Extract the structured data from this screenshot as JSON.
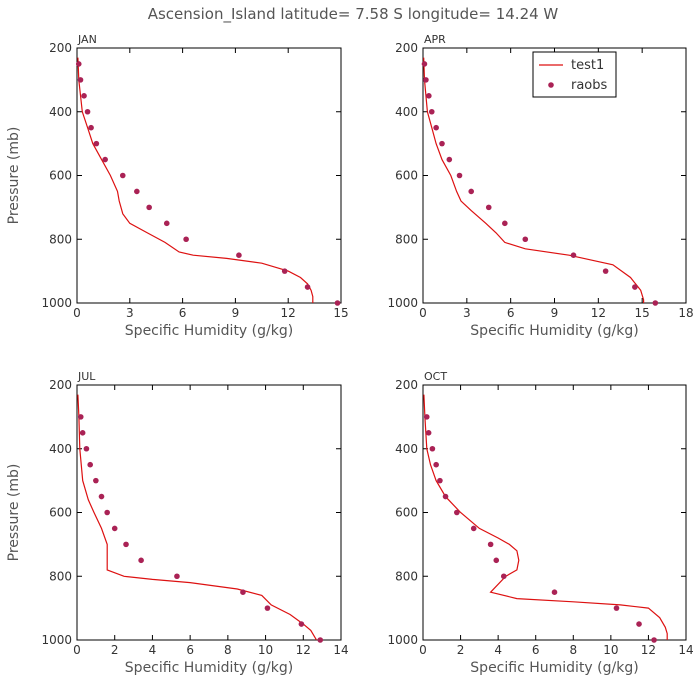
{
  "figure": {
    "title": "Ascension_Island  latitude= 7.58 S longitude= 14.24 W"
  },
  "legend": {
    "model_label": "test1",
    "obs_label": "raobs",
    "location": "top-right of APR panel"
  },
  "colors": {
    "model": "#dd1111",
    "obs": "#aa2255",
    "axis": "#000000",
    "label": "#555555"
  },
  "chart_data": [
    {
      "type": "line",
      "panel_title": "JAN",
      "xlabel": "Specific Humidity (g/kg)",
      "ylabel": "Pressure (mb)",
      "xlim": [
        0,
        15
      ],
      "ylim": [
        1000,
        200
      ],
      "y_inverted": true,
      "xticks": [
        0,
        3,
        6,
        9,
        12,
        15
      ],
      "yticks": [
        200,
        400,
        600,
        800,
        1000
      ],
      "series": [
        {
          "name": "test1",
          "kind": "line",
          "x": [
            0.05,
            0.1,
            0.3,
            0.6,
            0.9,
            1.4,
            1.9,
            2.3,
            2.4,
            2.6,
            3.0,
            4.0,
            5.0,
            5.8,
            6.6,
            8.5,
            10.5,
            12.0,
            12.7,
            13.1,
            13.3,
            13.4,
            13.4
          ],
          "y": [
            230,
            300,
            400,
            450,
            500,
            550,
            600,
            650,
            680,
            720,
            750,
            780,
            810,
            840,
            850,
            860,
            875,
            900,
            920,
            940,
            960,
            980,
            1000
          ]
        },
        {
          "name": "raobs",
          "kind": "scatter",
          "x": [
            0.1,
            0.2,
            0.4,
            0.6,
            0.8,
            1.1,
            1.6,
            2.6,
            3.4,
            4.1,
            5.1,
            6.2,
            9.2,
            11.8,
            13.1,
            14.8
          ],
          "y": [
            250,
            300,
            350,
            400,
            450,
            500,
            550,
            600,
            650,
            700,
            750,
            800,
            850,
            900,
            950,
            1000
          ]
        }
      ]
    },
    {
      "type": "line",
      "panel_title": "APR",
      "xlabel": "Specific Humidity (g/kg)",
      "ylabel": "",
      "xlim": [
        0,
        18
      ],
      "ylim": [
        1000,
        200
      ],
      "y_inverted": true,
      "xticks": [
        0,
        3,
        6,
        9,
        12,
        15,
        18
      ],
      "yticks": [
        200,
        400,
        600,
        800,
        1000
      ],
      "series": [
        {
          "name": "test1",
          "kind": "line",
          "x": [
            0.05,
            0.1,
            0.3,
            0.6,
            0.9,
            1.3,
            1.9,
            2.3,
            2.6,
            3.3,
            4.3,
            5.0,
            5.6,
            7.0,
            10.0,
            13.0,
            14.2,
            14.9,
            15.1,
            15.1
          ],
          "y": [
            230,
            300,
            400,
            450,
            500,
            550,
            600,
            650,
            680,
            710,
            750,
            780,
            810,
            830,
            850,
            880,
            920,
            960,
            990,
            1000
          ]
        },
        {
          "name": "raobs",
          "kind": "scatter",
          "x": [
            0.1,
            0.2,
            0.4,
            0.6,
            0.9,
            1.3,
            1.8,
            2.5,
            3.3,
            4.5,
            5.6,
            7.0,
            10.3,
            12.5,
            14.5,
            15.9
          ],
          "y": [
            250,
            300,
            350,
            400,
            450,
            500,
            550,
            600,
            650,
            700,
            750,
            800,
            850,
            900,
            950,
            1000
          ]
        }
      ]
    },
    {
      "type": "line",
      "panel_title": "JUL",
      "xlabel": "Specific Humidity (g/kg)",
      "ylabel": "Pressure (mb)",
      "xlim": [
        0,
        14
      ],
      "ylim": [
        1000,
        200
      ],
      "y_inverted": true,
      "xticks": [
        0,
        2,
        4,
        6,
        8,
        10,
        12,
        14
      ],
      "yticks": [
        200,
        400,
        600,
        800,
        1000
      ],
      "series": [
        {
          "name": "test1",
          "kind": "line",
          "x": [
            0.05,
            0.1,
            0.15,
            0.3,
            0.6,
            0.9,
            1.3,
            1.6,
            1.6,
            2.5,
            4.0,
            6.0,
            8.5,
            9.8,
            10.3,
            11.3,
            12.0,
            12.4,
            12.6,
            12.7
          ],
          "y": [
            230,
            300,
            400,
            500,
            560,
            600,
            650,
            700,
            780,
            800,
            810,
            820,
            840,
            860,
            890,
            920,
            950,
            970,
            990,
            1000
          ]
        },
        {
          "name": "raobs",
          "kind": "scatter",
          "x": [
            0.2,
            0.3,
            0.5,
            0.7,
            1.0,
            1.3,
            1.6,
            2.0,
            2.6,
            3.4,
            5.3,
            8.8,
            10.1,
            11.9,
            12.9
          ],
          "y": [
            300,
            350,
            400,
            450,
            500,
            550,
            600,
            650,
            700,
            750,
            800,
            850,
            900,
            950,
            1000
          ]
        }
      ]
    },
    {
      "type": "line",
      "panel_title": "OCT",
      "xlabel": "Specific Humidity (g/kg)",
      "ylabel": "",
      "xlim": [
        0,
        14
      ],
      "ylim": [
        1000,
        200
      ],
      "y_inverted": true,
      "xticks": [
        0,
        2,
        4,
        6,
        8,
        10,
        12,
        14
      ],
      "yticks": [
        200,
        400,
        600,
        800,
        1000
      ],
      "series": [
        {
          "name": "test1",
          "kind": "line",
          "x": [
            0.05,
            0.1,
            0.2,
            0.4,
            0.7,
            1.2,
            2.0,
            3.0,
            4.0,
            4.6,
            5.0,
            5.1,
            5.0,
            4.4,
            3.6,
            5.0,
            8.0,
            10.5,
            12.0,
            12.6,
            12.9,
            13.0,
            13.0
          ],
          "y": [
            230,
            300,
            400,
            450,
            500,
            550,
            600,
            650,
            680,
            700,
            720,
            750,
            780,
            800,
            850,
            870,
            880,
            890,
            900,
            930,
            960,
            980,
            1000
          ]
        },
        {
          "name": "raobs",
          "kind": "scatter",
          "x": [
            0.2,
            0.3,
            0.5,
            0.7,
            0.9,
            1.2,
            1.8,
            2.7,
            3.6,
            3.9,
            4.3,
            7.0,
            10.3,
            11.5,
            12.3
          ],
          "y": [
            300,
            350,
            400,
            450,
            500,
            550,
            600,
            650,
            700,
            750,
            800,
            850,
            900,
            950,
            1000
          ]
        }
      ]
    }
  ]
}
